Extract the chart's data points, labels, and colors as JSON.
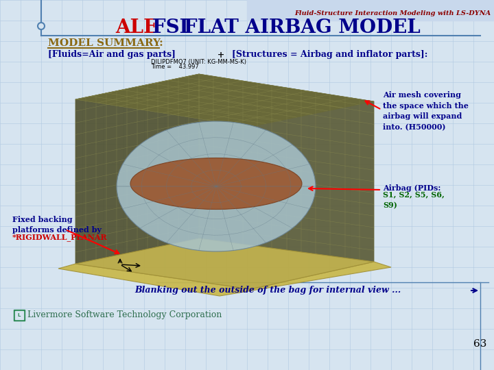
{
  "bg_color": "#d6e4f0",
  "title_top_right": "Fluid-Structure Interaction Modeling with LS-DYNA",
  "title_top_right_color": "#8b0000",
  "title_main_ale": "ALE ",
  "title_main_fsi": "FSI ",
  "title_main_rest": "FLAT AIRBAG MODEL",
  "title_main_ale_color": "#cc0000",
  "title_main_fsi_color": "#00008b",
  "title_main_rest_color": "#00008b",
  "model_summary_text": "MODEL SUMMARY:",
  "model_summary_color": "#8b6914",
  "fluids_text": "[Fluids=Air and gas parts]",
  "fluids_color": "#00008b",
  "plus_text": "  +  ",
  "plus_color": "#000000",
  "structures_text": "[Structures = Airbag and inflator parts]:",
  "structures_color": "#00008b",
  "subtitle_unit": "DILIPDFMO7 (UNIT: KG-MM-MS-K)",
  "subtitle_time": "Time =    43.997",
  "subtitle_color": "#000000",
  "annotation_air_mesh": "Air mesh covering\nthe space which the\nairbag will expand\ninto. (H50000)",
  "annotation_air_mesh_color": "#00008b",
  "annotation_airbag_title": "Airbag (PIDs:",
  "annotation_airbag_list": "S1, S2, S5, S6,\nS9)",
  "annotation_airbag_color": "#00008b",
  "annotation_airbag_list_color": "#006400",
  "annotation_fixed": "Fixed backing\nplatforms defined by",
  "annotation_fixed_color": "#00008b",
  "annotation_rigidwall": "*RIGIDWALL_PLANAR",
  "annotation_rigidwall_color": "#cc0000",
  "blanking_text": "Blanking out the outside of the bag for internal view ...",
  "blanking_color": "#00008b",
  "livermore_text": "Livermore Software Technology Corporation",
  "livermore_color": "#2e6e4e",
  "page_number": "63",
  "page_color": "#000000",
  "grid_color": "#b0c8e0",
  "header_band_color": "#c8d8ec",
  "line_color": "#5080b0"
}
